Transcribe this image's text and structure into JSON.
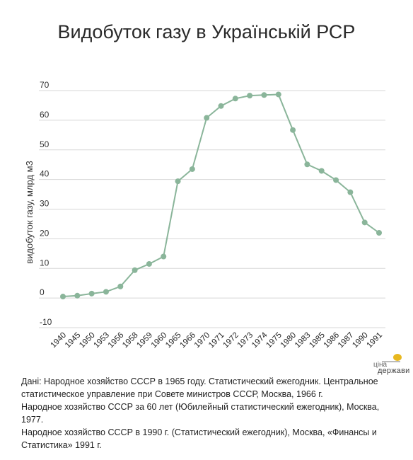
{
  "chart_data": {
    "type": "line",
    "title": "Видобуток газу в Українській РСР",
    "xlabel": "",
    "ylabel": "видобуток газу, млрд м3",
    "ylim": [
      -10,
      70
    ],
    "yticks": [
      70,
      60,
      50,
      40,
      30,
      20,
      10,
      0,
      -10
    ],
    "grid": true,
    "x": [
      "1940",
      "1945",
      "1950",
      "1953",
      "1956",
      "1958",
      "1959",
      "1960",
      "1965",
      "1966",
      "1970",
      "1971",
      "1972",
      "1973",
      "1974",
      "1975",
      "1980",
      "1983",
      "1985",
      "1986",
      "1987",
      "1990",
      "1991"
    ],
    "series": [
      {
        "values": [
          0.5,
          0.8,
          1.5,
          2.1,
          3.9,
          9.4,
          11.5,
          14.0,
          39.4,
          43.5,
          60.8,
          64.8,
          67.3,
          68.3,
          68.5,
          68.7,
          56.7,
          45.1,
          42.9,
          39.8,
          35.7,
          25.5,
          22.0
        ],
        "color": "#8ab59a"
      }
    ]
  },
  "source": {
    "lines": [
      "Дані: Народное хозяйство СССР в 1965 году. Статистический ежегодник. Центральное статистическое управление при Совете министров СССР, Москва, 1966 г.",
      "Народное хозяйство СССР за 60 лет (Юбилейный статистический ежегодник), Москва, 1977.",
      "Народное хозяйство СССР в 1990 г. (Статистический ежегодник), Москва, «Финансы и Статистика» 1991 г."
    ]
  },
  "logo": {
    "line1": "ціна",
    "line2": "держави",
    "color": "#e8b820"
  }
}
